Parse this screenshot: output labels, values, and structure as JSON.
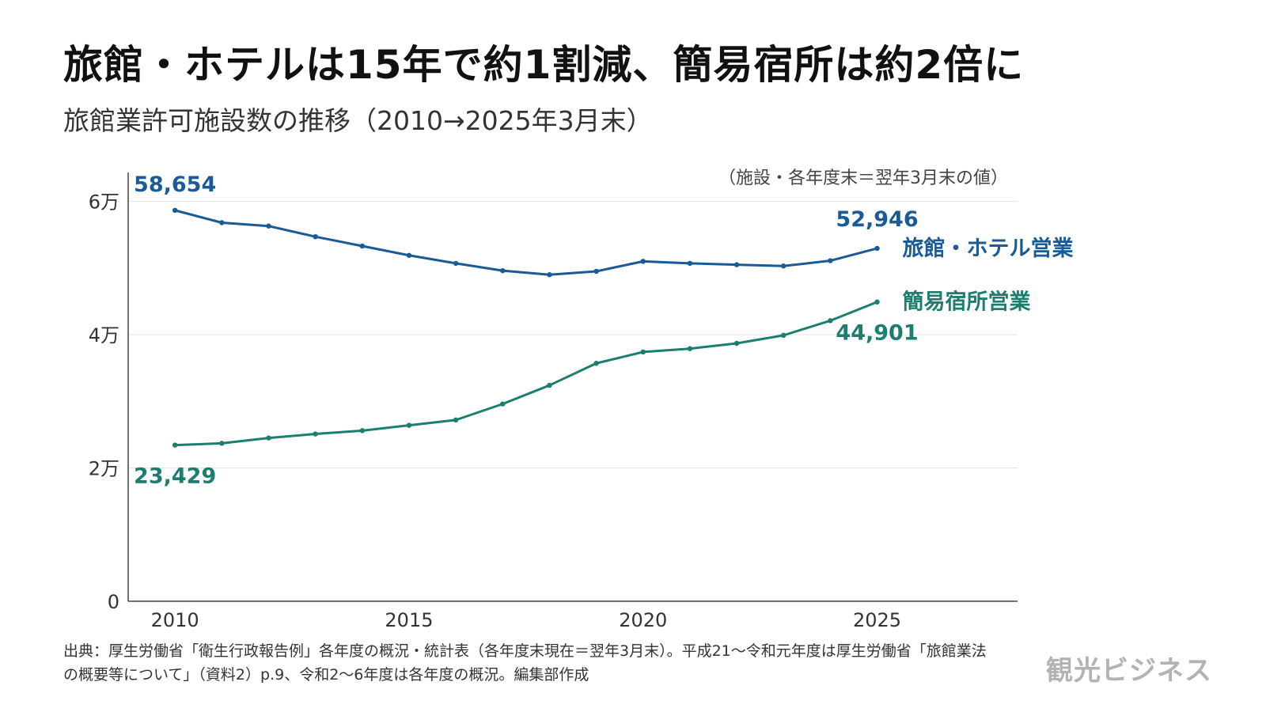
{
  "title": "旅館・ホテルは15年で約1割減、簡易宿所は約2倍に",
  "subtitle": "旅館業許可施設数の推移（2010→2025年3月末）",
  "source_note": "出典：厚生労働省「衛生行政報告例」各年度の概況・統計表（各年度末現在＝翌年3月末）。平成21〜令和元年度は厚生労働省「旅館業法の概要等について」（資料2）p.9、令和2〜6年度は各年度の概況。編集部作成",
  "brand": "観光ビジネス",
  "chart_data": {
    "type": "line",
    "unit_note": "（施設・各年度末＝翌年3月末の値）",
    "x": [
      2010,
      2011,
      2012,
      2013,
      2014,
      2015,
      2016,
      2017,
      2018,
      2019,
      2020,
      2021,
      2022,
      2023,
      2024,
      2025
    ],
    "xlim": [
      2009,
      2028
    ],
    "ylim": [
      0,
      66000
    ],
    "x_ticks": [
      2010,
      2015,
      2020,
      2025
    ],
    "x_tick_labels": [
      "2010",
      "2015",
      "2020",
      "2025"
    ],
    "y_ticks": [
      0,
      20000,
      40000,
      60000
    ],
    "y_tick_labels": [
      "0",
      "2万",
      "4万",
      "6万"
    ],
    "grid": true,
    "series": [
      {
        "name": "旅館・ホテル営業",
        "color": "#1a5a96",
        "values": [
          58654,
          56800,
          56300,
          54700,
          53300,
          51900,
          50700,
          49600,
          49000,
          49500,
          51000,
          50700,
          50500,
          50300,
          51100,
          52946
        ],
        "start_label": "58,654",
        "end_label": "52,946"
      },
      {
        "name": "簡易宿所営業",
        "color": "#1b7e6e",
        "values": [
          23429,
          23700,
          24500,
          25100,
          25600,
          26400,
          27200,
          29600,
          32400,
          35700,
          37400,
          37900,
          38700,
          39900,
          42100,
          44901
        ],
        "start_label": "23,429",
        "end_label": "44,901"
      }
    ]
  }
}
